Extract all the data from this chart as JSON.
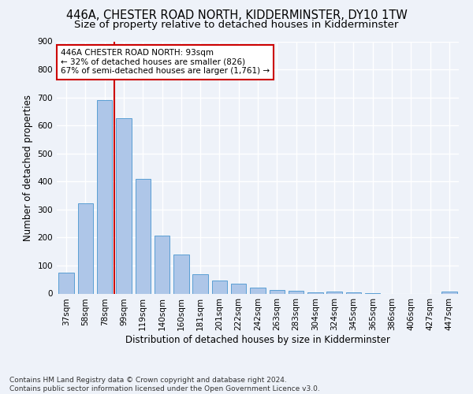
{
  "title": "446A, CHESTER ROAD NORTH, KIDDERMINSTER, DY10 1TW",
  "subtitle": "Size of property relative to detached houses in Kidderminster",
  "xlabel": "Distribution of detached houses by size in Kidderminster",
  "ylabel": "Number of detached properties",
  "categories": [
    "37sqm",
    "58sqm",
    "78sqm",
    "99sqm",
    "119sqm",
    "140sqm",
    "160sqm",
    "181sqm",
    "201sqm",
    "222sqm",
    "242sqm",
    "263sqm",
    "283sqm",
    "304sqm",
    "324sqm",
    "345sqm",
    "365sqm",
    "386sqm",
    "406sqm",
    "427sqm",
    "447sqm"
  ],
  "values": [
    75,
    322,
    690,
    625,
    410,
    207,
    140,
    70,
    47,
    35,
    22,
    12,
    10,
    5,
    8,
    4,
    2,
    0,
    0,
    0,
    8
  ],
  "bar_color": "#aec6e8",
  "bar_edge_color": "#5a9fd4",
  "vline_x_index": 2,
  "vline_color": "#cc0000",
  "annotation_text": "446A CHESTER ROAD NORTH: 93sqm\n← 32% of detached houses are smaller (826)\n67% of semi-detached houses are larger (1,761) →",
  "annotation_box_color": "#ffffff",
  "annotation_box_edge": "#cc0000",
  "ylim": [
    0,
    900
  ],
  "yticks": [
    0,
    100,
    200,
    300,
    400,
    500,
    600,
    700,
    800,
    900
  ],
  "footer": "Contains HM Land Registry data © Crown copyright and database right 2024.\nContains public sector information licensed under the Open Government Licence v3.0.",
  "bg_color": "#eef2f9",
  "grid_color": "#ffffff",
  "title_fontsize": 10.5,
  "subtitle_fontsize": 9.5,
  "xlabel_fontsize": 8.5,
  "ylabel_fontsize": 8.5,
  "tick_fontsize": 7.5,
  "annotation_fontsize": 7.5,
  "footer_fontsize": 6.5
}
